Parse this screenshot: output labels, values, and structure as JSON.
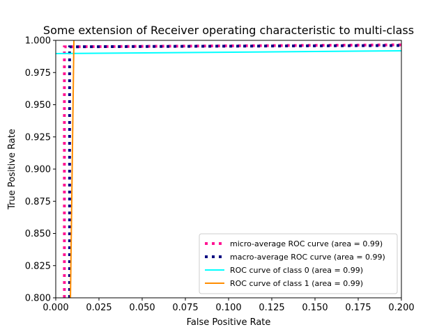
{
  "chart_data": {
    "type": "line",
    "title": "Some extension of Receiver operating characteristic to multi-class",
    "xlabel": "False Positive Rate",
    "ylabel": "True Positive Rate",
    "xlim": [
      0,
      0.2
    ],
    "ylim": [
      0.8,
      1.0
    ],
    "xticks": [
      {
        "value": 0,
        "label": "0.000"
      },
      {
        "value": 0.025,
        "label": "0.025"
      },
      {
        "value": 0.05,
        "label": "0.050"
      },
      {
        "value": 0.075,
        "label": "0.075"
      },
      {
        "value": 0.1,
        "label": "0.100"
      },
      {
        "value": 0.125,
        "label": "0.125"
      },
      {
        "value": 0.15,
        "label": "0.150"
      },
      {
        "value": 0.175,
        "label": "0.175"
      },
      {
        "value": 0.2,
        "label": "0.200"
      }
    ],
    "yticks": [
      {
        "value": 0.8,
        "label": "0.800"
      },
      {
        "value": 0.825,
        "label": "0.825"
      },
      {
        "value": 0.85,
        "label": "0.850"
      },
      {
        "value": 0.875,
        "label": "0.875"
      },
      {
        "value": 0.9,
        "label": "0.900"
      },
      {
        "value": 0.925,
        "label": "0.925"
      },
      {
        "value": 0.95,
        "label": "0.950"
      },
      {
        "value": 0.975,
        "label": "0.975"
      },
      {
        "value": 1.0,
        "label": "1.000"
      }
    ],
    "legend": "lower right",
    "series": [
      {
        "name": "micro-average ROC curve (area = 0.99)",
        "color": "#ff1493",
        "dash": "dotted",
        "x": [
          0.005,
          0.005,
          0.2
        ],
        "y": [
          0.8,
          0.995,
          0.9965
        ]
      },
      {
        "name": "macro-average ROC curve (area = 0.99)",
        "color": "#000080",
        "dash": "dotted",
        "x": [
          0.008,
          0.008,
          0.2
        ],
        "y": [
          0.8,
          0.995,
          0.996
        ]
      },
      {
        "name": "ROC curve of class 0 (area = 0.99)",
        "color": "#00ffff",
        "dash": "solid",
        "x": [
          0,
          0.2
        ],
        "y": [
          0.9897,
          0.9919
        ]
      },
      {
        "name": "ROC curve of class 1 (area = 0.99)",
        "color": "#ff8c00",
        "dash": "solid",
        "x": [
          0.0085,
          0.0105
        ],
        "y": [
          0.8,
          1.0
        ]
      }
    ]
  }
}
